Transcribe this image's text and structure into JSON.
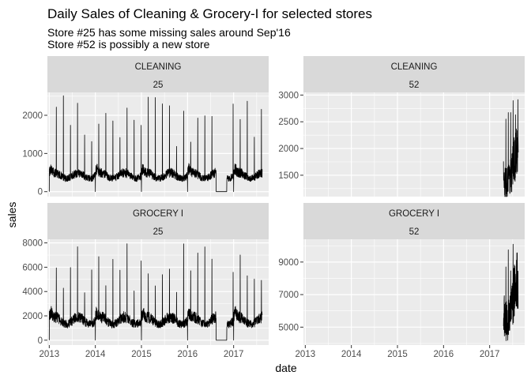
{
  "title": "Daily Sales of Cleaning & Grocery-I for selected stores",
  "subtitle_lines": [
    "Store #25 has some missing sales around Sep'16",
    "Store #52 is possibly a new store"
  ],
  "xlabel": "date",
  "ylabel": "sales",
  "chart_data": {
    "type": "line",
    "facet_grid": {
      "rows_by": "family",
      "cols_by": "store_nbr",
      "scales": "free_y"
    },
    "x_ticks": [
      "2013",
      "2014",
      "2015",
      "2016",
      "2017"
    ],
    "x_range": [
      2012.96,
      2017.76
    ],
    "line_color": "#000000",
    "panels": [
      {
        "family": "CLEANING",
        "store": "25",
        "y_ticks": [
          0,
          1000,
          2000
        ],
        "y_range": [
          -130,
          2600
        ],
        "baseline": 420,
        "peak_count": 30,
        "max_peak": 2520,
        "missing_range": [
          2016.62,
          2016.85
        ],
        "start": 2013.0,
        "end": 2017.62
      },
      {
        "family": "CLEANING",
        "store": "52",
        "y_ticks": [
          1500,
          2000,
          2500,
          3000
        ],
        "y_range": [
          1100,
          3050
        ],
        "baseline": 1650,
        "peak_count": 6,
        "max_peak": 2920,
        "missing_range": null,
        "start": 2017.3,
        "end": 2017.62
      },
      {
        "family": "GROCERY I",
        "store": "25",
        "y_ticks": [
          0,
          2000,
          4000,
          6000,
          8000
        ],
        "y_range": [
          -400,
          8300
        ],
        "baseline": 1600,
        "peak_count": 30,
        "max_peak": 8000,
        "missing_range": [
          2016.62,
          2016.85
        ],
        "start": 2013.0,
        "end": 2017.62
      },
      {
        "family": "GROCERY I",
        "store": "52",
        "y_ticks": [
          5000,
          7000,
          9000
        ],
        "y_range": [
          3900,
          10400
        ],
        "baseline": 6600,
        "peak_count": 6,
        "max_peak": 10400,
        "missing_range": null,
        "start": 2017.3,
        "end": 2017.62
      }
    ]
  }
}
